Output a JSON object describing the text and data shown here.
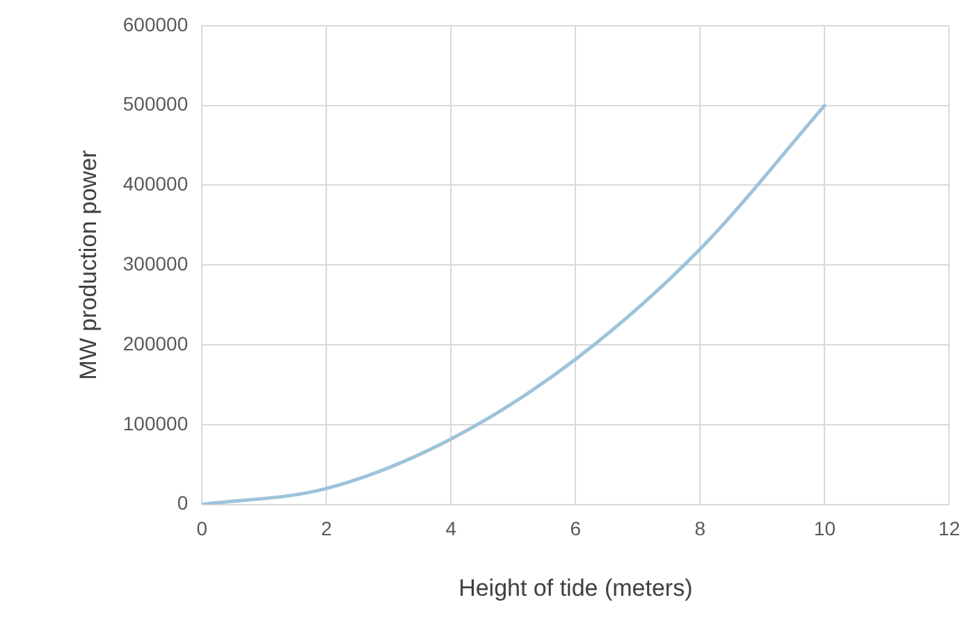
{
  "chart_data": {
    "type": "line",
    "xlabel": "Height of tide (meters)",
    "ylabel": "MW production power",
    "x": [
      0,
      2,
      4,
      6,
      8,
      10
    ],
    "series": [
      {
        "color": "#9ec3da",
        "values": [
          0,
          20000,
          82000,
          182000,
          320000,
          500000
        ]
      }
    ],
    "xlim": [
      0,
      12
    ],
    "xticks": [
      0,
      2,
      4,
      6,
      8,
      10,
      12
    ],
    "ylim": [
      0,
      600000
    ],
    "yticks": [
      0,
      100000,
      200000,
      300000,
      400000,
      500000,
      600000
    ],
    "grid": true,
    "legend": false,
    "marker": "none",
    "line_style": "solid"
  }
}
